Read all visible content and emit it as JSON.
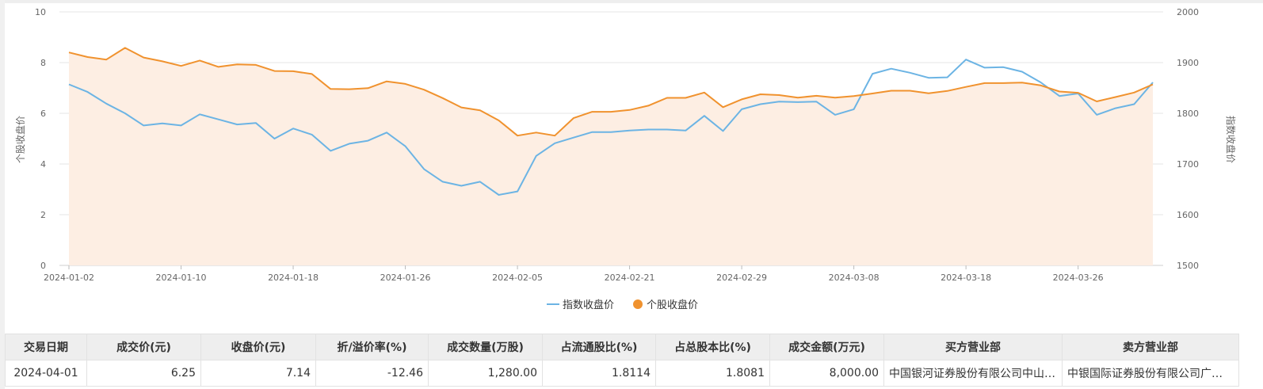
{
  "chart_data": {
    "type": "line",
    "x": [
      "2024-01-02",
      "2024-01-03",
      "2024-01-04",
      "2024-01-05",
      "2024-01-08",
      "2024-01-09",
      "2024-01-10",
      "2024-01-11",
      "2024-01-12",
      "2024-01-15",
      "2024-01-16",
      "2024-01-17",
      "2024-01-18",
      "2024-01-19",
      "2024-01-22",
      "2024-01-23",
      "2024-01-24",
      "2024-01-25",
      "2024-01-26",
      "2024-01-29",
      "2024-01-30",
      "2024-01-31",
      "2024-02-01",
      "2024-02-02",
      "2024-02-05",
      "2024-02-06",
      "2024-02-07",
      "2024-02-08",
      "2024-02-19",
      "2024-02-20",
      "2024-02-21",
      "2024-02-22",
      "2024-02-23",
      "2024-02-26",
      "2024-02-27",
      "2024-02-28",
      "2024-02-29",
      "2024-03-01",
      "2024-03-04",
      "2024-03-05",
      "2024-03-06",
      "2024-03-07",
      "2024-03-08",
      "2024-03-11",
      "2024-03-12",
      "2024-03-13",
      "2024-03-14",
      "2024-03-15",
      "2024-03-18",
      "2024-03-19",
      "2024-03-20",
      "2024-03-21",
      "2024-03-22",
      "2024-03-25",
      "2024-03-26",
      "2024-03-27",
      "2024-03-28",
      "2024-03-29",
      "2024-04-01"
    ],
    "x_tick_labels": [
      "2024-01-02",
      "2024-01-10",
      "2024-01-18",
      "2024-01-26",
      "2024-02-05",
      "2024-02-21",
      "2024-02-29",
      "2024-03-08",
      "2024-03-18",
      "2024-03-26"
    ],
    "series": [
      {
        "name": "指数收盘价",
        "axis": "right",
        "color": "#6cb4e4",
        "values": [
          1857,
          1842,
          1819,
          1800,
          1776,
          1780,
          1776,
          1798,
          1788,
          1778,
          1781,
          1750,
          1770,
          1758,
          1726,
          1740,
          1746,
          1762,
          1735,
          1690,
          1665,
          1657,
          1665,
          1639,
          1646,
          1716,
          1741,
          1752,
          1763,
          1763,
          1766,
          1768,
          1768,
          1766,
          1795,
          1765,
          1808,
          1818,
          1823,
          1822,
          1823,
          1797,
          1808,
          1878,
          1888,
          1880,
          1870,
          1871,
          1906,
          1890,
          1891,
          1882,
          1861,
          1834,
          1839,
          1797,
          1810,
          1818,
          1861
        ]
      },
      {
        "name": "个股收盘价",
        "axis": "left",
        "color": "#f0922e",
        "values": [
          8.4,
          8.22,
          8.12,
          8.58,
          8.2,
          8.05,
          7.87,
          8.08,
          7.83,
          7.93,
          7.91,
          7.67,
          7.66,
          7.55,
          6.96,
          6.95,
          6.99,
          7.26,
          7.16,
          6.93,
          6.6,
          6.23,
          6.12,
          5.72,
          5.12,
          5.24,
          5.12,
          5.81,
          6.06,
          6.06,
          6.13,
          6.3,
          6.61,
          6.61,
          6.82,
          6.24,
          6.55,
          6.75,
          6.72,
          6.62,
          6.69,
          6.62,
          6.68,
          6.78,
          6.89,
          6.89,
          6.79,
          6.88,
          7.04,
          7.19,
          7.19,
          7.21,
          7.1,
          6.86,
          6.81,
          6.47,
          6.64,
          6.82,
          7.14
        ]
      }
    ],
    "y_left": {
      "label": "个股收盘价",
      "lim": [
        0,
        10
      ],
      "ticks": [
        "0",
        "2",
        "4",
        "6",
        "8",
        "10"
      ]
    },
    "y_right": {
      "label": "指数收盘价",
      "lim": [
        1500,
        2000
      ],
      "ticks": [
        "1500",
        "1600",
        "1700",
        "1800",
        "1900",
        "2000"
      ]
    },
    "area_fill_series": "个股收盘价",
    "area_fill_color": "#fdeee3",
    "grid": true,
    "legend_position": "bottom-center"
  },
  "legend": [
    {
      "label": "指数收盘价",
      "color": "#6cb4e4",
      "marker": "line"
    },
    {
      "label": "个股收盘价",
      "color": "#f0922e",
      "marker": "dot"
    }
  ],
  "table": {
    "headers": [
      "交易日期",
      "成交价(元)",
      "收盘价(元)",
      "折/溢价率(%)",
      "成交数量(万股)",
      "占流通股比(%)",
      "占总股本比(%)",
      "成交金额(万元)",
      "买方营业部",
      "卖方营业部"
    ],
    "rows": [
      [
        "2024-04-01",
        "6.25",
        "7.14",
        "-12.46",
        "1,280.00",
        "1.8114",
        "1.8081",
        "8,000.00",
        "中国银河证券股份有限公司中山…",
        "中银国际证券股份有限公司广…"
      ]
    ]
  }
}
